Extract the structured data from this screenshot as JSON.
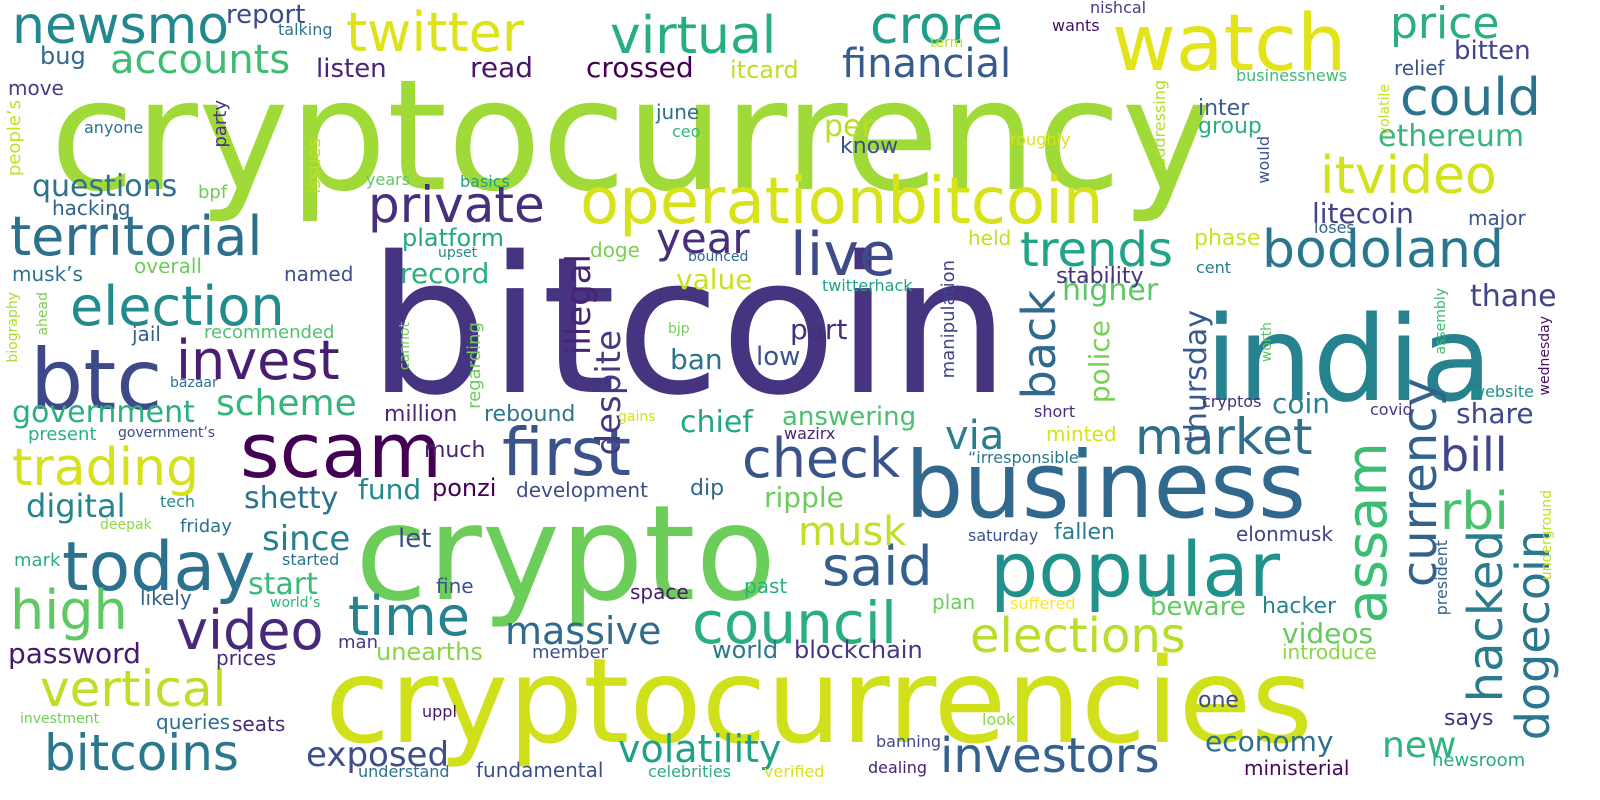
{
  "words": [
    {
      "text": "bitcoin",
      "color": "#463480"
    },
    {
      "text": "cryptocurrency",
      "color": "#a0da39"
    },
    {
      "text": "cryptocurrencies",
      "color": "#d0e11c"
    },
    {
      "text": "crypto",
      "color": "#6ccd5a"
    },
    {
      "text": "india",
      "color": "#26828e"
    },
    {
      "text": "business",
      "color": "#31688e"
    },
    {
      "text": "operationbitcoin",
      "color": "#d8e219"
    },
    {
      "text": "watch",
      "color": "#e2e418"
    },
    {
      "text": "popular",
      "color": "#21918c"
    },
    {
      "text": "scam",
      "color": "#440154"
    },
    {
      "text": "today",
      "color": "#2c728e"
    },
    {
      "text": "first",
      "color": "#3b528b"
    },
    {
      "text": "btc",
      "color": "#3e4989"
    },
    {
      "text": "video",
      "color": "#482878"
    },
    {
      "text": "twitter",
      "color": "#dde318"
    },
    {
      "text": "newsmo",
      "color": "#23888e"
    },
    {
      "text": "crore",
      "color": "#1f9e89"
    },
    {
      "text": "virtual",
      "color": "#27ad81"
    },
    {
      "text": "price",
      "color": "#2ab07f"
    },
    {
      "text": "council",
      "color": "#29af7f"
    },
    {
      "text": "election",
      "color": "#228c8d"
    },
    {
      "text": "trading",
      "color": "#d5e21a"
    },
    {
      "text": "territorial",
      "color": "#2d708e"
    },
    {
      "text": "invest",
      "color": "#481f70"
    },
    {
      "text": "live",
      "color": "#3e4a89"
    },
    {
      "text": "check",
      "color": "#3a538b"
    },
    {
      "text": "bodoland",
      "color": "#2a768e"
    },
    {
      "text": "market",
      "color": "#2e6f8e"
    },
    {
      "text": "said",
      "color": "#355f8d"
    },
    {
      "text": "time",
      "color": "#26828e"
    },
    {
      "text": "elections",
      "color": "#b8de29"
    },
    {
      "text": "vertical",
      "color": "#bddf26"
    },
    {
      "text": "bitcoins",
      "color": "#2a788e"
    },
    {
      "text": "high",
      "color": "#5ec962"
    },
    {
      "text": "investors",
      "color": "#34618d"
    },
    {
      "text": "private",
      "color": "#46307e"
    },
    {
      "text": "could",
      "color": "#2c738e"
    },
    {
      "text": "itvideo",
      "color": "#d2e21b"
    },
    {
      "text": "trends",
      "color": "#20a386"
    },
    {
      "text": "assam",
      "color": "#3dbc74"
    },
    {
      "text": "currency",
      "color": "#33638d"
    },
    {
      "text": "hacked",
      "color": "#297b8e"
    },
    {
      "text": "dogecoin",
      "color": "#2a778e"
    },
    {
      "text": "rbi",
      "color": "#4ac16d"
    },
    {
      "text": "bill",
      "color": "#3f4788"
    },
    {
      "text": "year",
      "color": "#472d7b"
    },
    {
      "text": "back",
      "color": "#30698e"
    },
    {
      "text": "accounts",
      "color": "#3fbc73"
    },
    {
      "text": "financial",
      "color": "#375b8d"
    },
    {
      "text": "massive",
      "color": "#306a8e"
    },
    {
      "text": "volatility",
      "color": "#1fa088"
    },
    {
      "text": "exposed",
      "color": "#3c4f8a"
    },
    {
      "text": "scheme",
      "color": "#32b67a"
    },
    {
      "text": "government",
      "color": "#2ab07f"
    },
    {
      "text": "questions",
      "color": "#2c718e"
    },
    {
      "text": "digital",
      "color": "#25848e"
    },
    {
      "text": "password",
      "color": "#481a6c"
    },
    {
      "text": "economy",
      "color": "#2e6e8e"
    },
    {
      "text": "new",
      "color": "#2eb37c"
    },
    {
      "text": "musk",
      "color": "#c0df25"
    },
    {
      "text": "via",
      "color": "#287d8e"
    },
    {
      "text": "ethereum",
      "color": "#35b779"
    },
    {
      "text": "thursday",
      "color": "#38598c"
    },
    {
      "text": "illegal",
      "color": "#482374"
    },
    {
      "text": "despite",
      "color": "#443a83"
    },
    {
      "text": "since",
      "color": "#26818e"
    },
    {
      "text": "shetty",
      "color": "#2d718e"
    },
    {
      "text": "start",
      "color": "#3aba76"
    },
    {
      "text": "fund",
      "color": "#23898e"
    },
    {
      "text": "higher",
      "color": "#5cc863"
    },
    {
      "text": "share",
      "color": "#3f4889"
    },
    {
      "text": "thane",
      "color": "#414487"
    },
    {
      "text": "litecoin",
      "color": "#404588"
    },
    {
      "text": "coin",
      "color": "#25838e"
    },
    {
      "text": "record",
      "color": "#2ab07f"
    },
    {
      "text": "platform",
      "color": "#22a785"
    },
    {
      "text": "part",
      "color": "#472f7d"
    },
    {
      "text": "ban",
      "color": "#2c728e"
    },
    {
      "text": "low",
      "color": "#3b528b"
    },
    {
      "text": "chief",
      "color": "#22a884"
    },
    {
      "text": "answering",
      "color": "#4ac16d"
    },
    {
      "text": "police",
      "color": "#7ad151"
    },
    {
      "text": "ripple",
      "color": "#6ccd5a"
    },
    {
      "text": "beware",
      "color": "#62cb5f"
    },
    {
      "text": "videos",
      "color": "#65cb5e"
    },
    {
      "text": "world",
      "color": "#2a788e"
    },
    {
      "text": "blockchain",
      "color": "#453781"
    },
    {
      "text": "unearths",
      "color": "#89d548"
    },
    {
      "text": "hacker",
      "color": "#26828e"
    },
    {
      "text": "introduce",
      "color": "#8bd646"
    },
    {
      "text": "ponzi",
      "color": "#440154"
    },
    {
      "text": "development",
      "color": "#3d4d8a"
    },
    {
      "text": "dip",
      "color": "#31688e"
    },
    {
      "text": "much",
      "color": "#482173"
    },
    {
      "text": "million",
      "color": "#482979"
    },
    {
      "text": "rebound",
      "color": "#2b758e"
    },
    {
      "text": "value",
      "color": "#cae11f"
    },
    {
      "text": "per",
      "color": "#bade28"
    },
    {
      "text": "know",
      "color": "#3c4f8a"
    },
    {
      "text": "group",
      "color": "#29af7f"
    },
    {
      "text": "inter",
      "color": "#355f8d"
    },
    {
      "text": "stability",
      "color": "#46337f"
    },
    {
      "text": "held",
      "color": "#c2df23"
    },
    {
      "text": "phase",
      "color": "#cde11d"
    },
    {
      "text": "cent",
      "color": "#287c8e"
    },
    {
      "text": "loses",
      "color": "#33638d"
    },
    {
      "text": "major",
      "color": "#3b528b"
    },
    {
      "text": "bitten",
      "color": "#404588"
    },
    {
      "text": "relief",
      "color": "#39568c"
    },
    {
      "text": "businessnews",
      "color": "#3fbc73"
    },
    {
      "text": "crossed",
      "color": "#440154"
    },
    {
      "text": "itcard",
      "color": "#bddf26"
    },
    {
      "text": "read",
      "color": "#481668"
    },
    {
      "text": "listen",
      "color": "#482576"
    },
    {
      "text": "bug",
      "color": "#31688e"
    },
    {
      "text": "report",
      "color": "#3e4989"
    },
    {
      "text": "talking",
      "color": "#2c728e"
    },
    {
      "text": "move",
      "color": "#433e85"
    },
    {
      "text": "anyone",
      "color": "#2c718e"
    },
    {
      "text": "people’s",
      "color": "#c8e020"
    },
    {
      "text": "hacking",
      "color": "#33638d"
    },
    {
      "text": "bpf",
      "color": "#6ece58"
    },
    {
      "text": "years",
      "color": "#5ec962"
    },
    {
      "text": "basics",
      "color": "#1fa088"
    },
    {
      "text": "issues",
      "color": "#c2df23"
    },
    {
      "text": "party",
      "color": "#46327e"
    },
    {
      "text": "ceo",
      "color": "#32b67a"
    },
    {
      "text": "june",
      "color": "#2e6f8e"
    },
    {
      "text": "roughly",
      "color": "#dde318"
    },
    {
      "text": "addressing",
      "color": "#b0dd2f"
    },
    {
      "text": "would",
      "color": "#3b528b"
    },
    {
      "text": "volatile",
      "color": "#c0df25"
    },
    {
      "text": "term",
      "color": "#b0dd2f"
    },
    {
      "text": "nishcal",
      "color": "#433e85"
    },
    {
      "text": "wants",
      "color": "#471164"
    },
    {
      "text": "overall",
      "color": "#6ccd5a"
    },
    {
      "text": "musk’s",
      "color": "#2c728e"
    },
    {
      "text": "named",
      "color": "#3d4e8a"
    },
    {
      "text": "upset",
      "color": "#23898e"
    },
    {
      "text": "doge",
      "color": "#7ad151"
    },
    {
      "text": "bounced",
      "color": "#31688e"
    },
    {
      "text": "twitterhack",
      "color": "#20a386"
    },
    {
      "text": "biography",
      "color": "#addc30"
    },
    {
      "text": "ahead",
      "color": "#7ad151"
    },
    {
      "text": "jail",
      "color": "#355f8d"
    },
    {
      "text": "recommended",
      "color": "#4ec36b"
    },
    {
      "text": "bazaar",
      "color": "#2d708e"
    },
    {
      "text": "present",
      "color": "#2ab07f"
    },
    {
      "text": "government’s",
      "color": "#3e4989"
    },
    {
      "text": "cannot",
      "color": "#6ece58"
    },
    {
      "text": "regarding",
      "color": "#6ccd5a"
    },
    {
      "text": "manipulation",
      "color": "#414487"
    },
    {
      "text": "gains",
      "color": "#d0e11c"
    },
    {
      "text": "bjp",
      "color": "#6ece58"
    },
    {
      "text": "wazirx",
      "color": "#482575"
    },
    {
      "text": "short",
      "color": "#472d7b"
    },
    {
      "text": "minted",
      "color": "#d8e219"
    },
    {
      "text": "“irresponsible",
      "color": "#2a778e"
    },
    {
      "text": "cryptos",
      "color": "#46307e"
    },
    {
      "text": "covid",
      "color": "#453781"
    },
    {
      "text": "website",
      "color": "#21918c"
    },
    {
      "text": "wednesday",
      "color": "#471063"
    },
    {
      "text": "worth",
      "color": "#5ac864"
    },
    {
      "text": "assembly",
      "color": "#3dbc74"
    },
    {
      "text": "deepak",
      "color": "#8fd744"
    },
    {
      "text": "tech",
      "color": "#23898e"
    },
    {
      "text": "friday",
      "color": "#2c728e"
    },
    {
      "text": "mark",
      "color": "#2ab07f"
    },
    {
      "text": "started",
      "color": "#2c718e"
    },
    {
      "text": "let",
      "color": "#3d4d8a"
    },
    {
      "text": "likely",
      "color": "#35608d"
    },
    {
      "text": "world’s",
      "color": "#33b67a"
    },
    {
      "text": "fine",
      "color": "#39558c"
    },
    {
      "text": "man",
      "color": "#453882"
    },
    {
      "text": "prices",
      "color": "#472b7a"
    },
    {
      "text": "space",
      "color": "#481b6d"
    },
    {
      "text": "past",
      "color": "#2ab07f"
    },
    {
      "text": "plan",
      "color": "#6ccd5a"
    },
    {
      "text": "suffered",
      "color": "#fde725"
    },
    {
      "text": "elonmusk",
      "color": "#414287"
    },
    {
      "text": "fallen",
      "color": "#287c8e"
    },
    {
      "text": "saturday",
      "color": "#3c508b"
    },
    {
      "text": "president",
      "color": "#33638d"
    },
    {
      "text": "underground",
      "color": "#c2df23"
    },
    {
      "text": "member",
      "color": "#3c4f8a"
    },
    {
      "text": "queries",
      "color": "#2e6e8e"
    },
    {
      "text": "seats",
      "color": "#472a7a"
    },
    {
      "text": "uppl",
      "color": "#481769"
    },
    {
      "text": "investment",
      "color": "#6ece58"
    },
    {
      "text": "one",
      "color": "#3e4989"
    },
    {
      "text": "look",
      "color": "#8bd646"
    },
    {
      "text": "banning",
      "color": "#3e4989"
    },
    {
      "text": "dealing",
      "color": "#482071"
    },
    {
      "text": "says",
      "color": "#46317e"
    },
    {
      "text": "ministerial",
      "color": "#46075a"
    },
    {
      "text": "newsroom",
      "color": "#25ac82"
    },
    {
      "text": "understand",
      "color": "#2c718e"
    },
    {
      "text": "fundamental",
      "color": "#3c4f8a"
    },
    {
      "text": "celebrities",
      "color": "#27ad81"
    },
    {
      "text": "verified",
      "color": "#d8e219"
    }
  ]
}
